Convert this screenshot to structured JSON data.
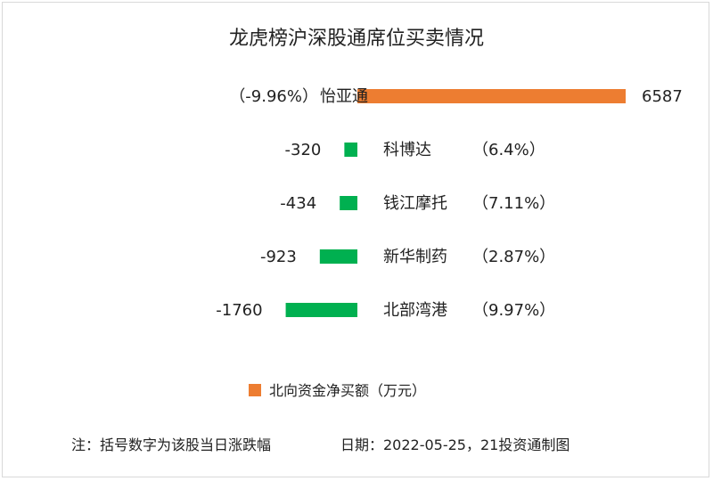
{
  "chart_data": {
    "type": "bar",
    "orientation": "horizontal",
    "title": "龙虎榜沪深股通席位买卖情况",
    "legend": {
      "label": "北向资金净买额（万元）",
      "color": "#ED7D31",
      "position": "bottom"
    },
    "positive_color": "#ED7D31",
    "negative_color": "#00B050",
    "grid": false,
    "xlim": [
      -1760,
      6587
    ],
    "categories": [
      "怡亚通",
      "科博达",
      "钱江摩托",
      "新华制药",
      "北部湾港"
    ],
    "values": [
      6587,
      -320,
      -434,
      -923,
      -1760
    ],
    "value_labels": [
      "6587",
      "-320",
      "-434",
      "-923",
      "-1760"
    ],
    "change_labels": [
      "（-9.96%）",
      "（6.4%）",
      "（7.11%）",
      "（2.87%）",
      "（9.97%）"
    ]
  },
  "footer": {
    "note": "注：括号数字为该股当日涨跌幅",
    "date": "日期：2022-05-25，21投资通制图"
  }
}
